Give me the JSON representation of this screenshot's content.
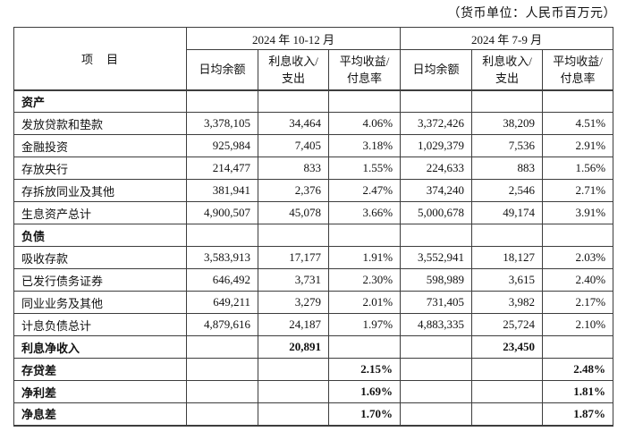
{
  "page": {
    "unit_note": "（货币单位：人民币百万元）"
  },
  "table": {
    "item_header": "项　目",
    "period_groups": [
      {
        "label": "2024 年 10-12 月"
      },
      {
        "label": "2024 年 7-9 月"
      }
    ],
    "sub_headers": [
      "日均余额",
      "利息收入/\n支出",
      "平均收益/\n付息率"
    ],
    "rows": [
      {
        "label": "资产",
        "bold": true,
        "cells": [
          "",
          "",
          "",
          "",
          "",
          ""
        ]
      },
      {
        "label": "发放贷款和垫款",
        "bold": false,
        "cells": [
          "3,378,105",
          "34,464",
          "4.06%",
          "3,372,426",
          "38,209",
          "4.51%"
        ]
      },
      {
        "label": "金融投资",
        "bold": false,
        "cells": [
          "925,984",
          "7,405",
          "3.18%",
          "1,029,379",
          "7,536",
          "2.91%"
        ]
      },
      {
        "label": "存放央行",
        "bold": false,
        "cells": [
          "214,477",
          "833",
          "1.55%",
          "224,633",
          "883",
          "1.56%"
        ]
      },
      {
        "label": "存拆放同业及其他",
        "bold": false,
        "cells": [
          "381,941",
          "2,376",
          "2.47%",
          "374,240",
          "2,546",
          "2.71%"
        ]
      },
      {
        "label": "生息资产总计",
        "bold": false,
        "cells": [
          "4,900,507",
          "45,078",
          "3.66%",
          "5,000,678",
          "49,174",
          "3.91%"
        ]
      },
      {
        "label": "负债",
        "bold": true,
        "cells": [
          "",
          "",
          "",
          "",
          "",
          ""
        ]
      },
      {
        "label": "吸收存款",
        "bold": false,
        "cells": [
          "3,583,913",
          "17,177",
          "1.91%",
          "3,552,941",
          "18,127",
          "2.03%"
        ]
      },
      {
        "label": "已发行债务证券",
        "bold": false,
        "cells": [
          "646,492",
          "3,731",
          "2.30%",
          "598,989",
          "3,615",
          "2.40%"
        ]
      },
      {
        "label": "同业业务及其他",
        "bold": false,
        "cells": [
          "649,211",
          "3,279",
          "2.01%",
          "731,405",
          "3,982",
          "2.17%"
        ]
      },
      {
        "label": "计息负债总计",
        "bold": false,
        "cells": [
          "4,879,616",
          "24,187",
          "1.97%",
          "4,883,335",
          "25,724",
          "2.10%"
        ]
      },
      {
        "label": "利息净收入",
        "bold": true,
        "cells": [
          "",
          "20,891",
          "",
          "",
          "23,450",
          ""
        ]
      },
      {
        "label": "存贷差",
        "bold": true,
        "cells": [
          "",
          "",
          "2.15%",
          "",
          "",
          "2.48%"
        ]
      },
      {
        "label": "净利差",
        "bold": true,
        "cells": [
          "",
          "",
          "1.69%",
          "",
          "",
          "1.81%"
        ]
      },
      {
        "label": "净息差",
        "bold": true,
        "cells": [
          "",
          "",
          "1.70%",
          "",
          "",
          "1.87%"
        ]
      }
    ]
  }
}
